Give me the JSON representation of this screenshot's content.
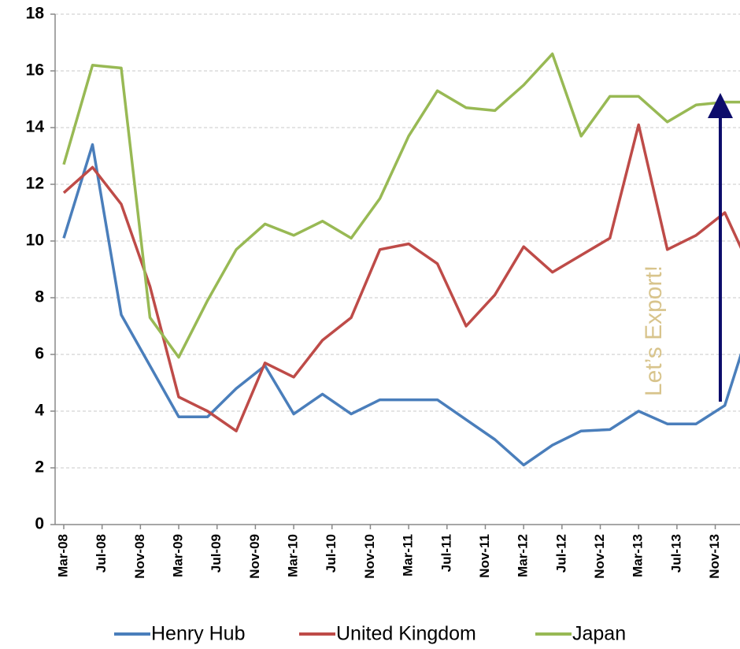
{
  "chart_data": {
    "type": "line",
    "annotation": "Let’s Export!",
    "x": [
      "Mar-08",
      "Jun-08",
      "Sep-08",
      "Dec-08",
      "Mar-09",
      "Jun-09",
      "Sep-09",
      "Dec-09",
      "Mar-10",
      "Jun-10",
      "Sep-10",
      "Dec-10",
      "Mar-11",
      "Jun-11",
      "Sep-11",
      "Dec-11",
      "Mar-12",
      "Jun-12",
      "Sep-12",
      "Dec-12",
      "Mar-13",
      "Jun-13",
      "Sep-13",
      "Dec-13",
      "Mar-14"
    ],
    "series": [
      {
        "name": "Henry Hub",
        "color": "#4a7ebb",
        "values": [
          10.1,
          13.4,
          7.4,
          5.6,
          3.8,
          3.8,
          4.8,
          5.6,
          3.9,
          4.6,
          3.9,
          4.4,
          4.4,
          4.4,
          3.7,
          3.0,
          2.1,
          2.8,
          3.3,
          3.35,
          4.0,
          3.55,
          3.55,
          4.2,
          7.4
        ]
      },
      {
        "name": "United Kingdom",
        "color": "#be4b48",
        "values": [
          11.7,
          12.6,
          11.3,
          8.4,
          4.5,
          4.0,
          3.3,
          5.7,
          5.2,
          6.5,
          7.3,
          9.7,
          9.9,
          9.2,
          7.0,
          8.1,
          9.8,
          8.9,
          9.5,
          10.1,
          14.1,
          9.7,
          10.2,
          11.0,
          8.8
        ]
      },
      {
        "name": "Japan",
        "color": "#98b954",
        "values": [
          12.7,
          16.2,
          16.1,
          7.3,
          5.9,
          7.9,
          9.7,
          10.6,
          10.2,
          10.7,
          10.1,
          11.5,
          13.7,
          15.3,
          14.7,
          14.6,
          15.5,
          16.6,
          13.7,
          15.1,
          15.1,
          14.2,
          14.8,
          14.9,
          14.9
        ]
      }
    ],
    "xticks": [
      "Mar-08",
      "Jul-08",
      "Nov-08",
      "Mar-09",
      "Jul-09",
      "Nov-09",
      "Mar-10",
      "Jul-10",
      "Nov-10",
      "Mar-11",
      "Jul-11",
      "Nov-11",
      "Mar-12",
      "Jul-12",
      "Nov-12",
      "Mar-13",
      "Jul-13",
      "Nov-13"
    ],
    "ylim": [
      0,
      18
    ],
    "yticks": [
      0,
      2,
      4,
      6,
      8,
      10,
      12,
      14,
      16,
      18
    ],
    "grid": true,
    "legend": "bottom"
  }
}
